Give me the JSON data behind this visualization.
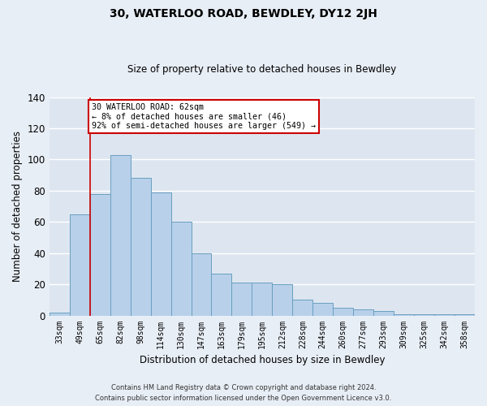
{
  "title": "30, WATERLOO ROAD, BEWDLEY, DY12 2JH",
  "subtitle": "Size of property relative to detached houses in Bewdley",
  "xlabel": "Distribution of detached houses by size in Bewdley",
  "ylabel": "Number of detached properties",
  "categories": [
    "33sqm",
    "49sqm",
    "65sqm",
    "82sqm",
    "98sqm",
    "114sqm",
    "130sqm",
    "147sqm",
    "163sqm",
    "179sqm",
    "195sqm",
    "212sqm",
    "228sqm",
    "244sqm",
    "260sqm",
    "277sqm",
    "293sqm",
    "309sqm",
    "325sqm",
    "342sqm",
    "358sqm"
  ],
  "values": [
    2,
    65,
    78,
    103,
    88,
    79,
    60,
    40,
    27,
    21,
    21,
    20,
    10,
    8,
    5,
    4,
    3,
    1,
    1,
    1,
    1
  ],
  "bar_color": "#b8d0ea",
  "bar_edge_color": "#6a9fc0",
  "annotation_box_color": "#ffffff",
  "annotation_box_edgecolor": "#cc0000",
  "vline_color": "#cc0000",
  "vline_x": 1.5,
  "ylim": [
    0,
    140
  ],
  "yticks": [
    0,
    20,
    40,
    60,
    80,
    100,
    120,
    140
  ],
  "background_color": "#dde6f0",
  "fig_background_color": "#e8eef6",
  "grid_color": "#ffffff",
  "marker_label": "30 WATERLOO ROAD: 62sqm",
  "marker_pct_smaller": "8% of detached houses are smaller (46)",
  "marker_pct_larger": "92% of semi-detached houses are larger (549)",
  "footer_line1": "Contains HM Land Registry data © Crown copyright and database right 2024.",
  "footer_line2": "Contains public sector information licensed under the Open Government Licence v3.0."
}
